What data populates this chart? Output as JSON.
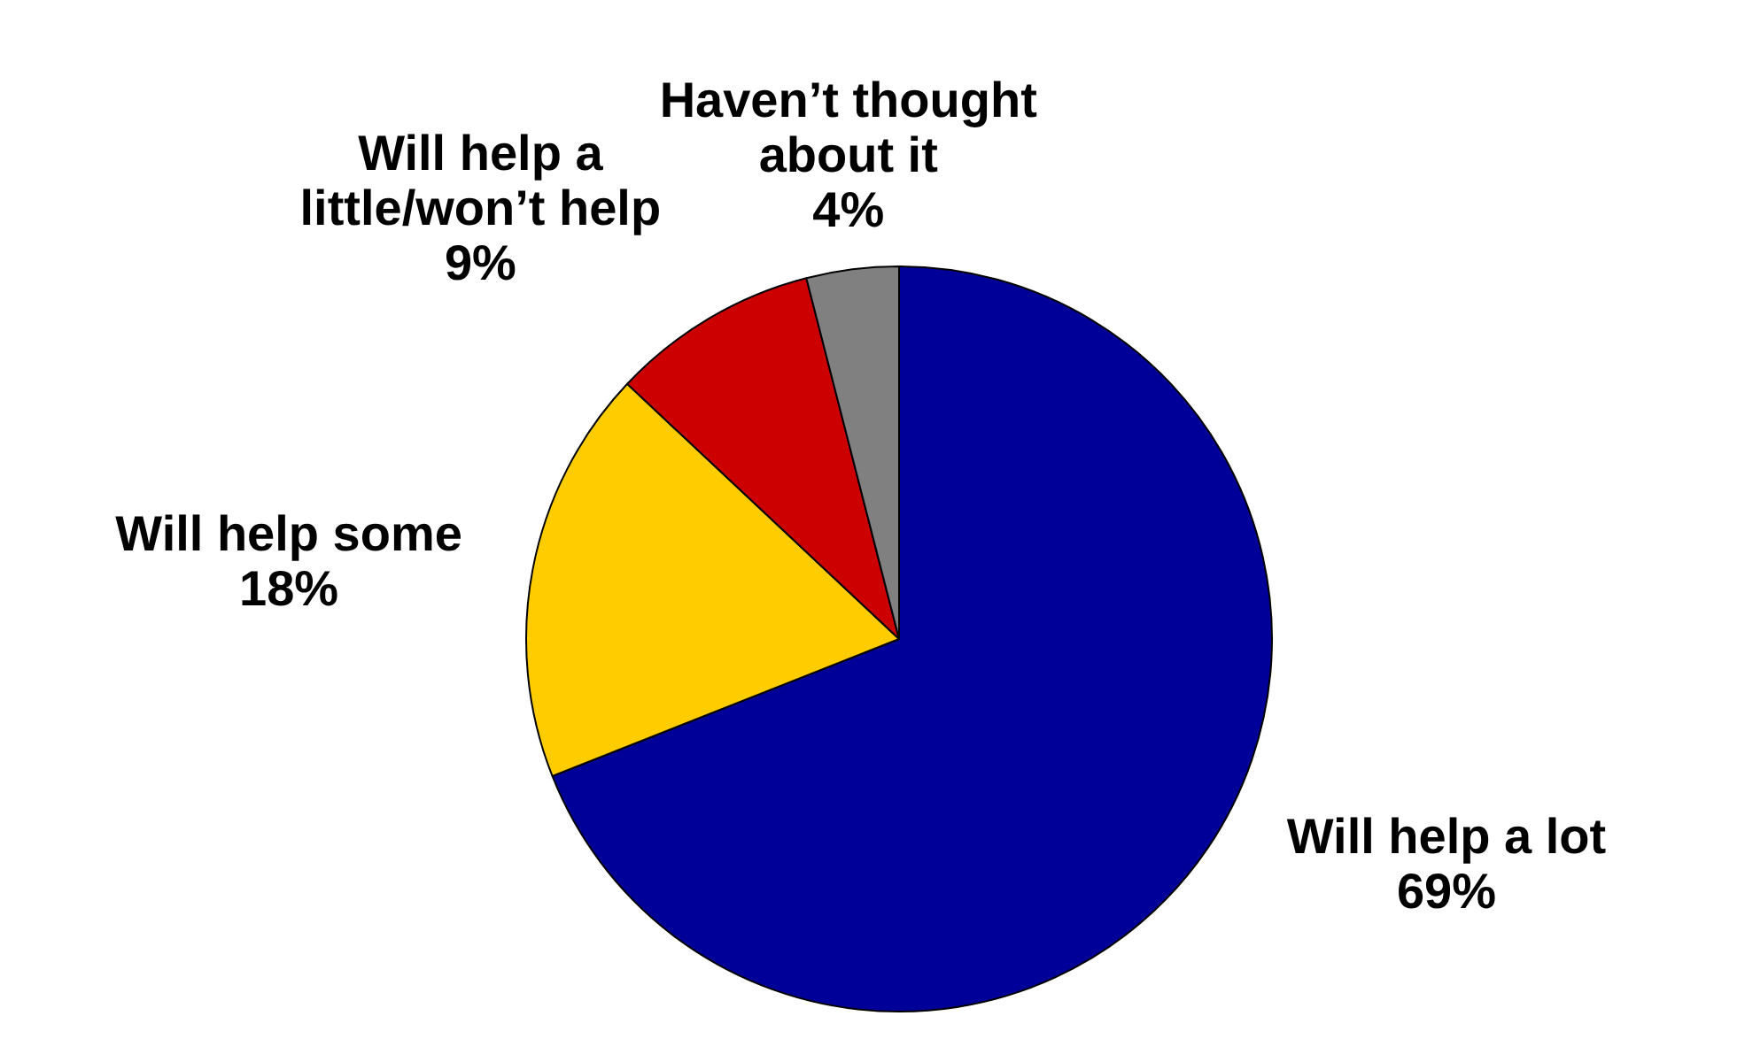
{
  "chart_data": {
    "type": "pie",
    "categories": [
      "Will help a lot",
      "Will help some",
      "Will help a little/won’t help",
      "Haven’t thought about it"
    ],
    "values": [
      69,
      18,
      9,
      4
    ],
    "value_labels": [
      "69%",
      "18%",
      "9%",
      "4%"
    ],
    "colors": [
      "#000099",
      "#ffcc00",
      "#cc0000",
      "#808080"
    ],
    "legend": false
  }
}
